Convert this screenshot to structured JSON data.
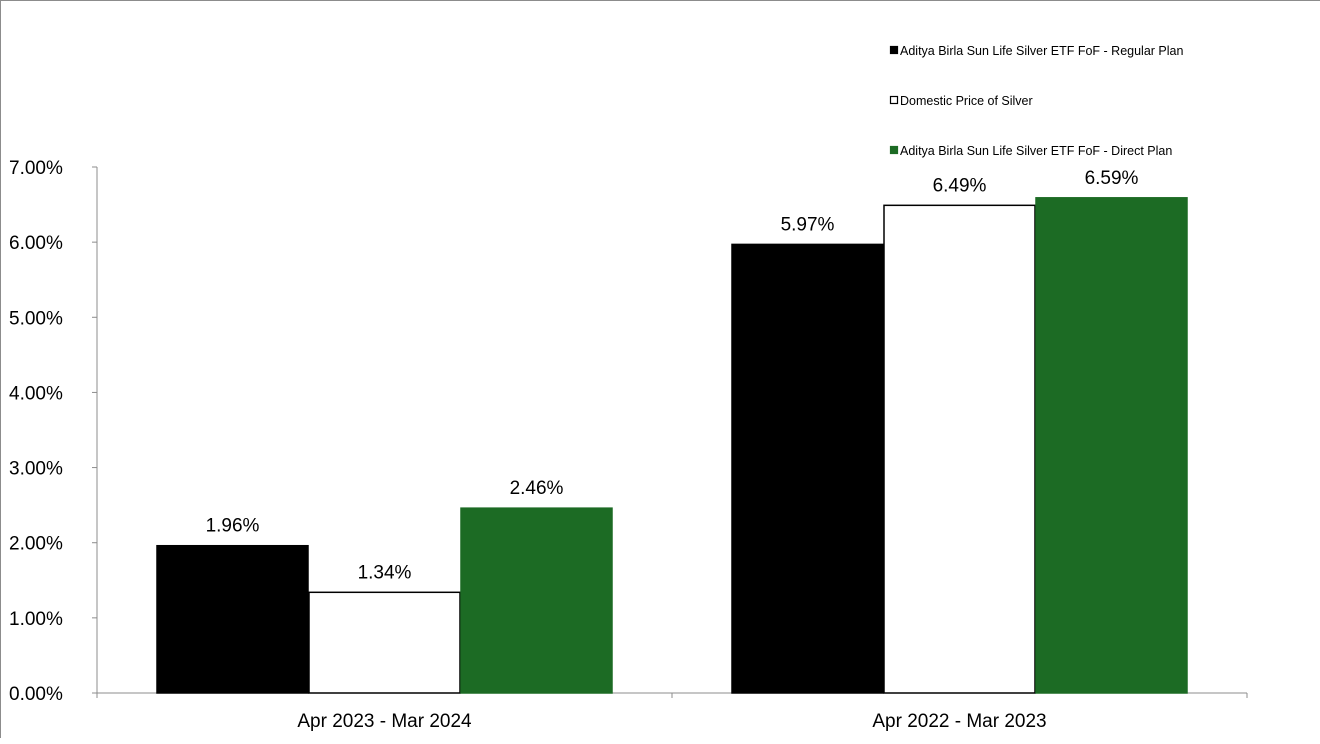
{
  "chart_data": {
    "type": "bar",
    "title": "",
    "xlabel": "",
    "ylabel": "",
    "categories": [
      "Apr 2023 - Mar 2024",
      "Apr 2022 - Mar 2023"
    ],
    "series": [
      {
        "name": "Aditya Birla Sun Life Silver ETF FoF - Regular Plan",
        "values": [
          1.96,
          5.97
        ],
        "labels": [
          "1.96%",
          "5.97%"
        ],
        "color": "#000000",
        "stroke": "#000000"
      },
      {
        "name": "Domestic Price of Silver",
        "values": [
          1.34,
          6.49
        ],
        "labels": [
          "1.34%",
          "6.49%"
        ],
        "color": "#ffffff",
        "stroke": "#000000"
      },
      {
        "name": "Aditya Birla Sun Life Silver ETF FoF - Direct Plan",
        "values": [
          2.46,
          6.59
        ],
        "labels": [
          "2.46%",
          "6.59%"
        ],
        "color": "#1c6b24",
        "stroke": "#1c6b24"
      }
    ],
    "ylim": [
      0,
      7
    ],
    "yticks": [
      0,
      1,
      2,
      3,
      4,
      5,
      6,
      7
    ],
    "ytick_labels": [
      "0.00%",
      "1.00%",
      "2.00%",
      "3.00%",
      "4.00%",
      "5.00%",
      "6.00%",
      "7.00%"
    ],
    "grid": false,
    "legend_position": "top-right"
  }
}
